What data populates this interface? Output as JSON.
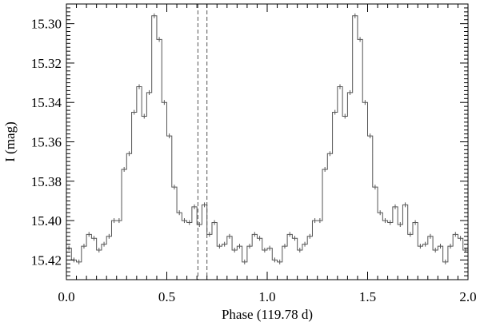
{
  "chart_data": {
    "type": "line",
    "style": "step histogram with error bars",
    "title": "",
    "xlabel": "Phase (119.78 d)",
    "ylabel": "I (mag)",
    "xlim": [
      0.0,
      2.0
    ],
    "ylim": [
      15.43,
      15.29
    ],
    "y_inverted": true,
    "x_tick_labels": [
      "0.0",
      "0.5",
      "1.0",
      "1.5",
      "2.0"
    ],
    "x_ticks": [
      0.0,
      0.5,
      1.0,
      1.5,
      2.0
    ],
    "y_tick_labels": [
      "15.30",
      "15.32",
      "15.34",
      "15.36",
      "15.38",
      "15.40",
      "15.42"
    ],
    "y_ticks": [
      15.3,
      15.32,
      15.34,
      15.36,
      15.38,
      15.4,
      15.42
    ],
    "vertical_dashed_lines_x": [
      0.655,
      0.7
    ],
    "bin_width": 0.025,
    "bin_count_per_cycle": 40,
    "series": [
      {
        "values": [
          15.414,
          15.42,
          15.421,
          15.413,
          15.407,
          15.409,
          15.415,
          15.412,
          15.408,
          15.4,
          15.4,
          15.374,
          15.366,
          15.345,
          15.332,
          15.347,
          15.335,
          15.296,
          15.308,
          15.34,
          15.357,
          15.383,
          15.396,
          15.4,
          15.401,
          15.393,
          15.402,
          15.392,
          15.407,
          15.401,
          15.413,
          15.412,
          15.408,
          15.415,
          15.413,
          15.421,
          15.413,
          15.407,
          15.409,
          15.415
        ]
      }
    ],
    "line_color": "#555555",
    "axis_color": "#000000",
    "background": "#ffffff"
  }
}
